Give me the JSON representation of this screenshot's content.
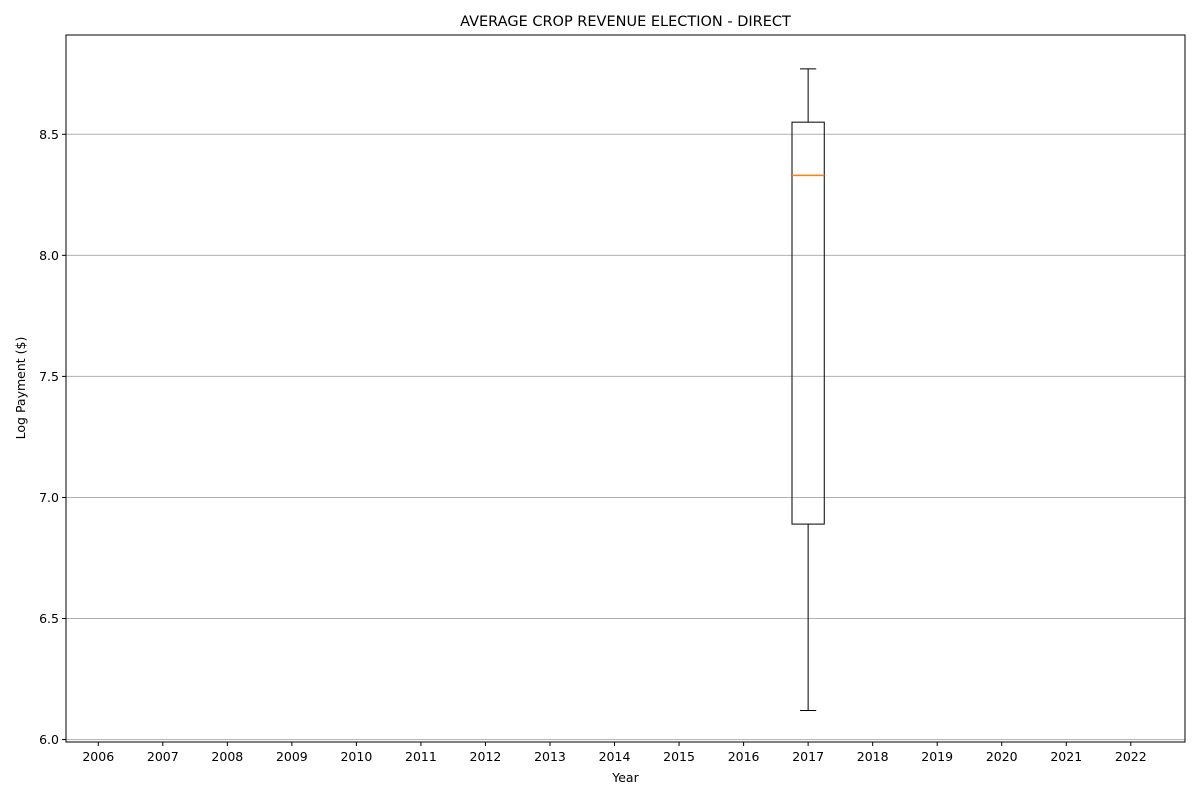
{
  "chart_data": {
    "type": "box",
    "title": "AVERAGE CROP REVENUE ELECTION - DIRECT",
    "xlabel": "Year",
    "ylabel": "Log Payment ($)",
    "categories": [
      "2006",
      "2007",
      "2008",
      "2009",
      "2010",
      "2011",
      "2012",
      "2013",
      "2014",
      "2015",
      "2016",
      "2017",
      "2018",
      "2019",
      "2020",
      "2021",
      "2022"
    ],
    "yticks": [
      "6.0",
      "6.5",
      "7.0",
      "7.5",
      "8.0",
      "8.5"
    ],
    "ylim": [
      5.99,
      8.91
    ],
    "grid": "y-axis",
    "boxes": [
      {
        "category": "2017",
        "whisker_low": 6.12,
        "q1": 6.89,
        "median": 8.33,
        "q3": 8.55,
        "whisker_high": 8.77
      }
    ],
    "colors": {
      "box": "#000000",
      "median": "#ff7f0e",
      "grid": "#b0b0b0"
    }
  }
}
